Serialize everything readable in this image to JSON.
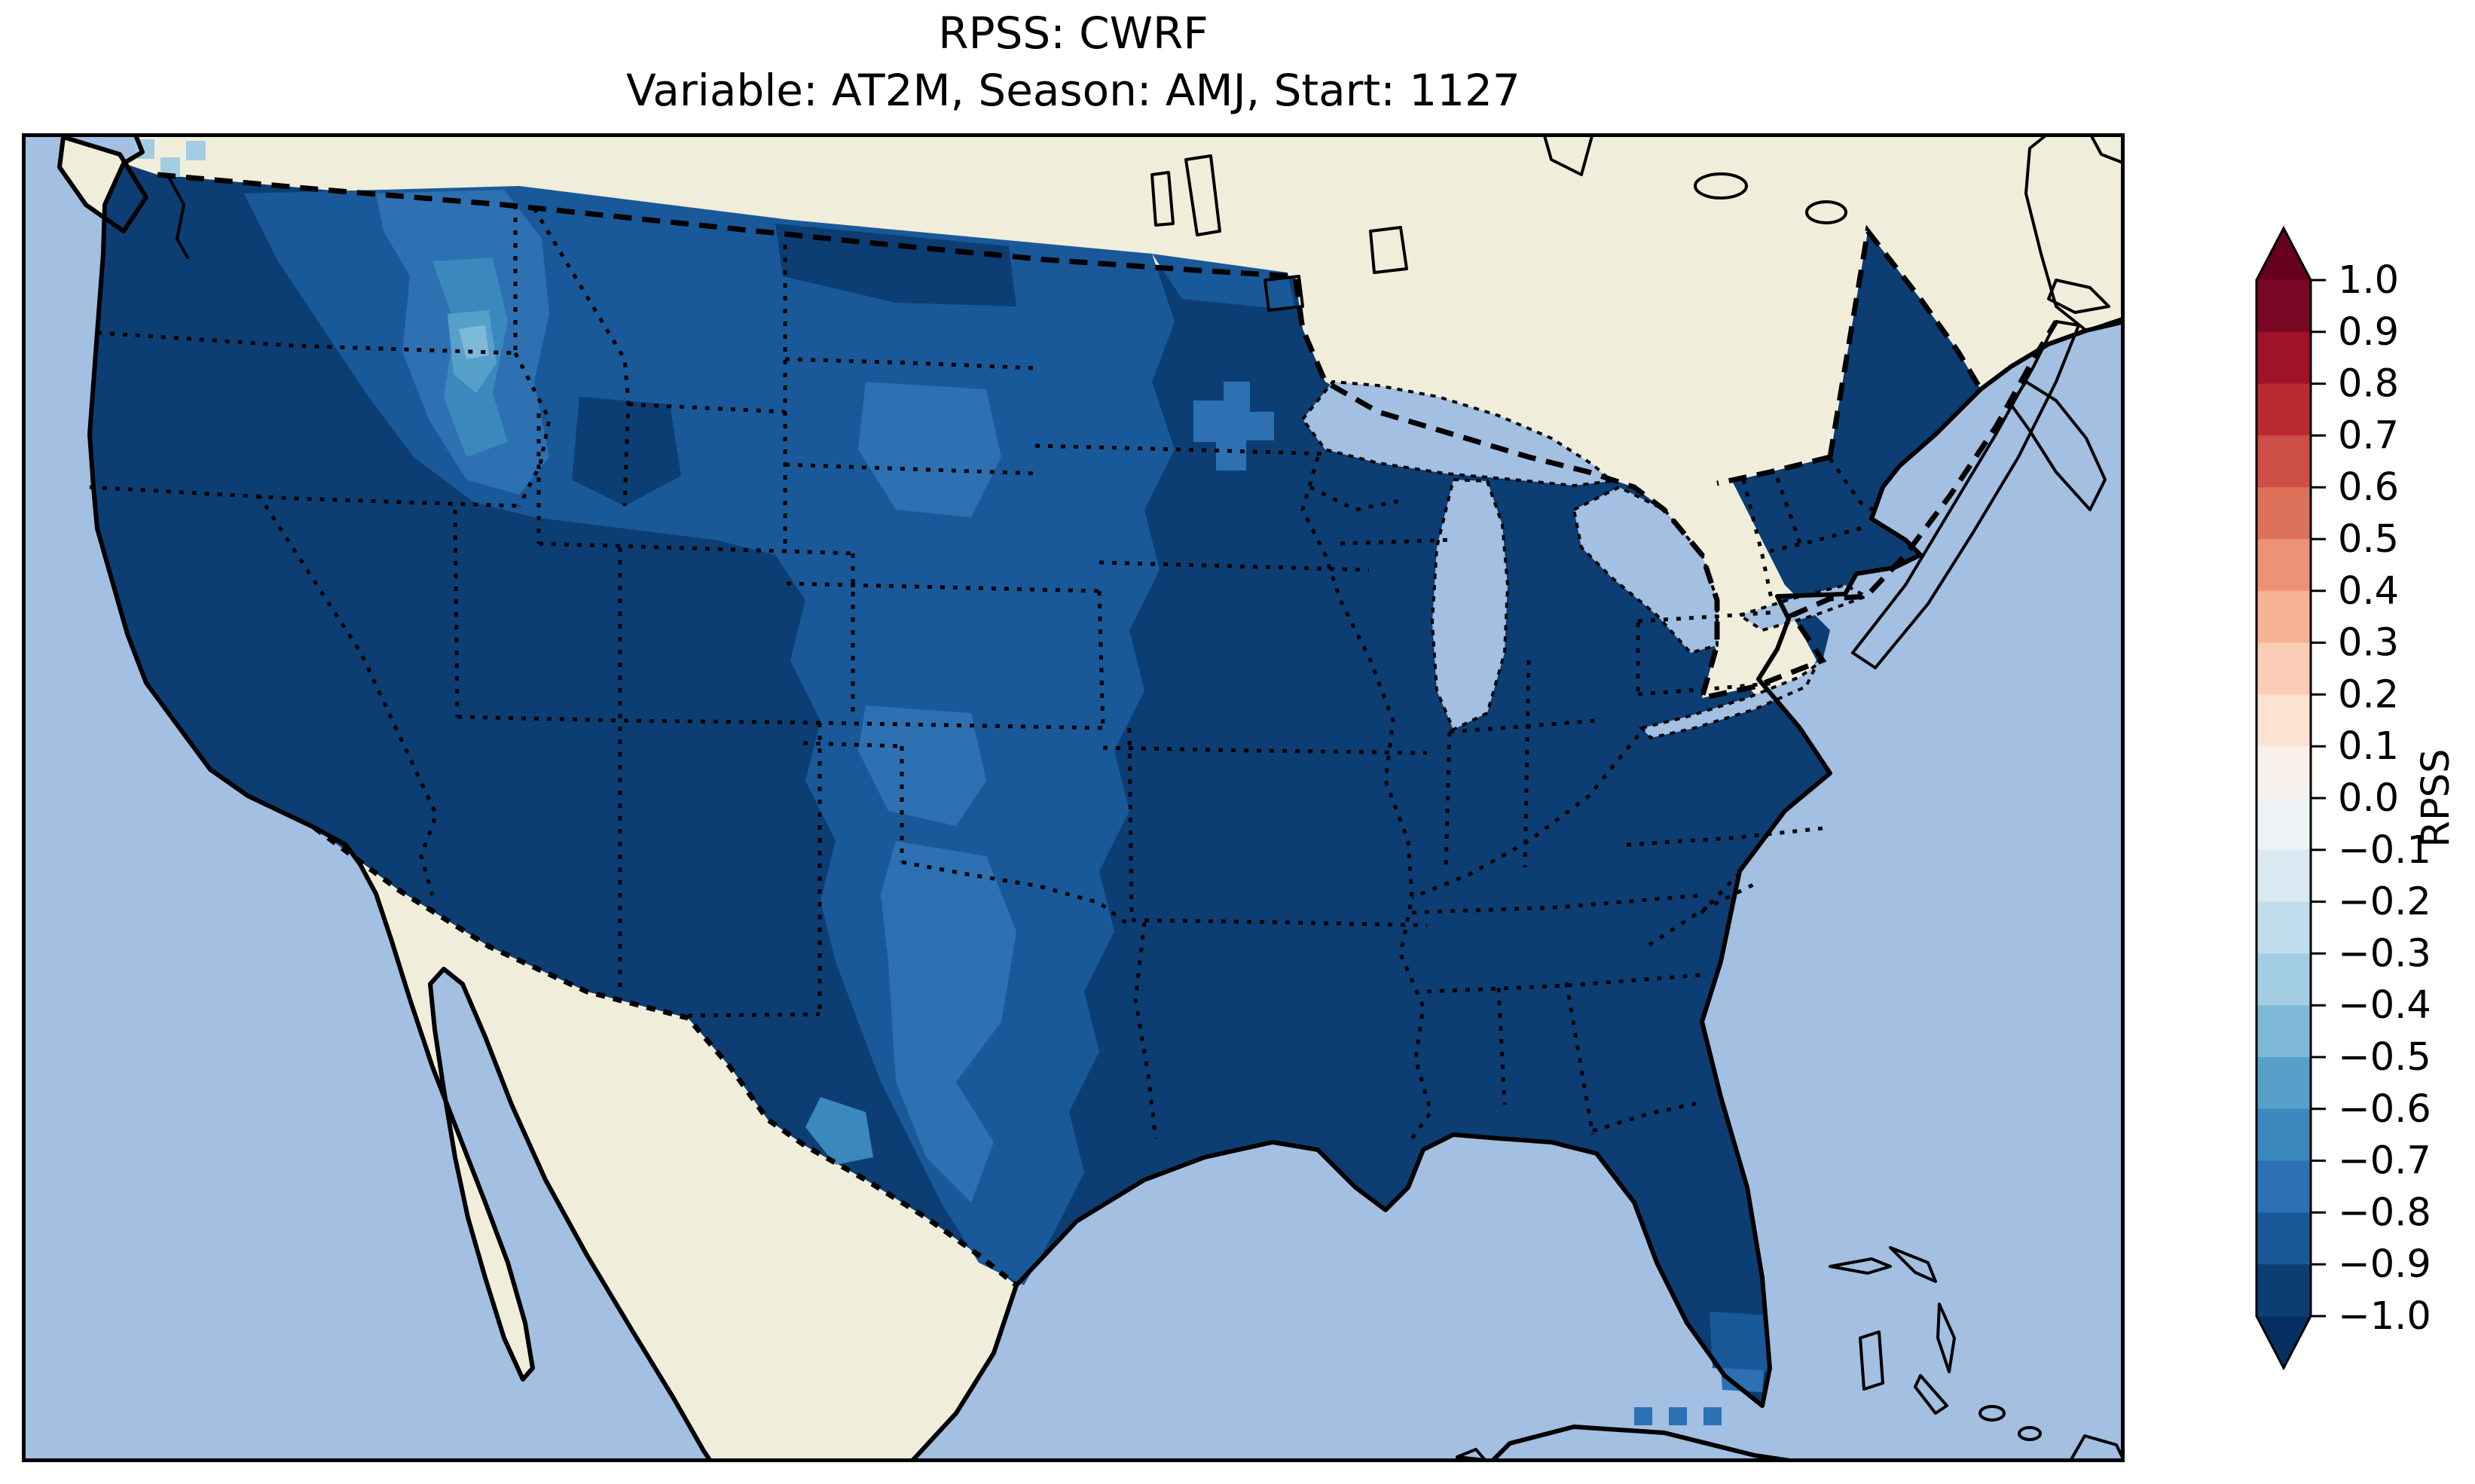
{
  "title": {
    "line1": "RPSS: CWRF",
    "line2": "Variable: AT2M, Season: AMJ, Start: 1127"
  },
  "colorbar": {
    "label": "RPSS",
    "ticks": [
      "1.0",
      "0.9",
      "0.8",
      "0.7",
      "0.6",
      "0.5",
      "0.4",
      "0.3",
      "0.2",
      "0.1",
      "0.0",
      "−0.1",
      "−0.2",
      "−0.3",
      "−0.4",
      "−0.5",
      "−0.6",
      "−0.7",
      "−0.8",
      "−0.9",
      "−1.0"
    ],
    "bin_colors_top_to_bottom": [
      "#790622",
      "#9f1228",
      "#bb2a33",
      "#cd4e44",
      "#dd715a",
      "#ec9375",
      "#f6b293",
      "#fbcdb6",
      "#fbe2d3",
      "#f8f0eb",
      "#edf2f5",
      "#dae9f2",
      "#c1ddec",
      "#a2cde3",
      "#7eb9d7",
      "#57a0ca",
      "#3a88bd",
      "#2d71b2",
      "#1a5999",
      "#0c3e74"
    ],
    "extend_over_color": "#67001f",
    "extend_under_color": "#053061",
    "outline_color": "#000000"
  },
  "palette": {
    "ocean": "#a3bfe2",
    "land": "#f0eedb",
    "lake": "#a3bfe2",
    "coastline": "#000000",
    "rpss_m10": "#0c3e74",
    "rpss_m09": "#1a5999",
    "rpss_m08": "#2d71b2",
    "rpss_m07": "#3a88bd",
    "rpss_m06": "#57a0ca",
    "rpss_m05": "#7eb9d7",
    "rpss_m03": "#a2cde3"
  },
  "chart_data": {
    "type": "heatmap",
    "title": "RPSS: CWRF",
    "subtitle": "Variable: AT2M, Season: AMJ, Start: 1127",
    "model": "CWRF",
    "variable": "AT2M",
    "season": "AMJ",
    "start": "1127",
    "region": "Contiguous United States (Lambert-conic style map with Canada, Mexico, Great Lakes, Bahamas, Cuba)",
    "colorbar": {
      "label": "RPSS",
      "range": [
        -1.0,
        1.0
      ],
      "step": 0.1,
      "bins": 20,
      "colormap": "RdBu_r discrete",
      "extend": "both",
      "tick_labels": [
        "1.0",
        "0.9",
        "0.8",
        "0.7",
        "0.6",
        "0.5",
        "0.4",
        "0.3",
        "0.2",
        "0.1",
        "0.0",
        "−0.1",
        "−0.2",
        "−0.3",
        "−0.4",
        "−0.5",
        "−0.6",
        "−0.7",
        "−0.8",
        "−0.9",
        "−1.0"
      ]
    },
    "legend_position": "right",
    "grid": false,
    "values_summary": [
      {
        "region": "Eastern US, Midwest, Gulf states, Florida, California, Nevada, Arizona, Utah, coastal Pacific NW",
        "rpss": -1.0
      },
      {
        "region": "Eastern Washington/Oregon, Idaho margins, Montana, Wyoming, western Dakotas, Nebraska, Kansas, New Mexico, west Texas",
        "rpss": -0.85
      },
      {
        "region": "Northeast Washington, northern Idaho, central Minnesota patch, SD/NE patch, central Texas band, OK/TX panhandle patch",
        "rpss": -0.75
      },
      {
        "region": "Idaho core and Big Bend Texas spot",
        "rpss": -0.65
      },
      {
        "region": "Small central Idaho core",
        "rpss": -0.55
      },
      {
        "region": "Smallest central Idaho cells",
        "rpss": -0.45
      },
      {
        "region": "Few cells near Strait of Juan de Fuca",
        "rpss": -0.25
      },
      {
        "region": "Florida Keys cells southwest of peninsula tip",
        "rpss": -0.75
      }
    ]
  }
}
